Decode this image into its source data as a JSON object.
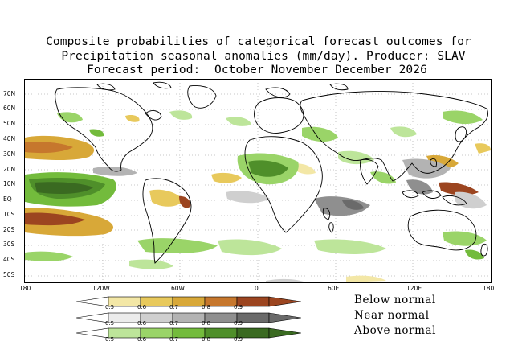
{
  "title": {
    "line1": "Composite probabilities of categorical forecast outcomes for",
    "line2": "Precipitation seasonal anomalies (mm/day). Producer: SLAV",
    "line3": "Forecast period:  October_November_December_2026"
  },
  "axes": {
    "lat_labels": [
      "70N",
      "60N",
      "50N",
      "40N",
      "30N",
      "20N",
      "10N",
      "EQ",
      "10S",
      "20S",
      "30S",
      "40S",
      "50S"
    ],
    "lon_labels": [
      "180",
      "120W",
      "60W",
      "0",
      "60E",
      "120E",
      "180"
    ]
  },
  "legend": {
    "categories": [
      {
        "label": "Below normal",
        "colors": [
          "#f3e7a6",
          "#e8c95c",
          "#d8a838",
          "#c6772d",
          "#9c4520"
        ]
      },
      {
        "label": "Near normal",
        "colors": [
          "#ececec",
          "#cfcfcf",
          "#b3b3b3",
          "#8f8f8f",
          "#6a6a6a"
        ]
      },
      {
        "label": "Above normal",
        "colors": [
          "#bde59a",
          "#9ad468",
          "#73bb3c",
          "#4f8f2a",
          "#3a6a21"
        ]
      }
    ],
    "tick_values": [
      "0.5",
      "0.6",
      "0.7",
      "0.8",
      "0.9"
    ]
  }
}
